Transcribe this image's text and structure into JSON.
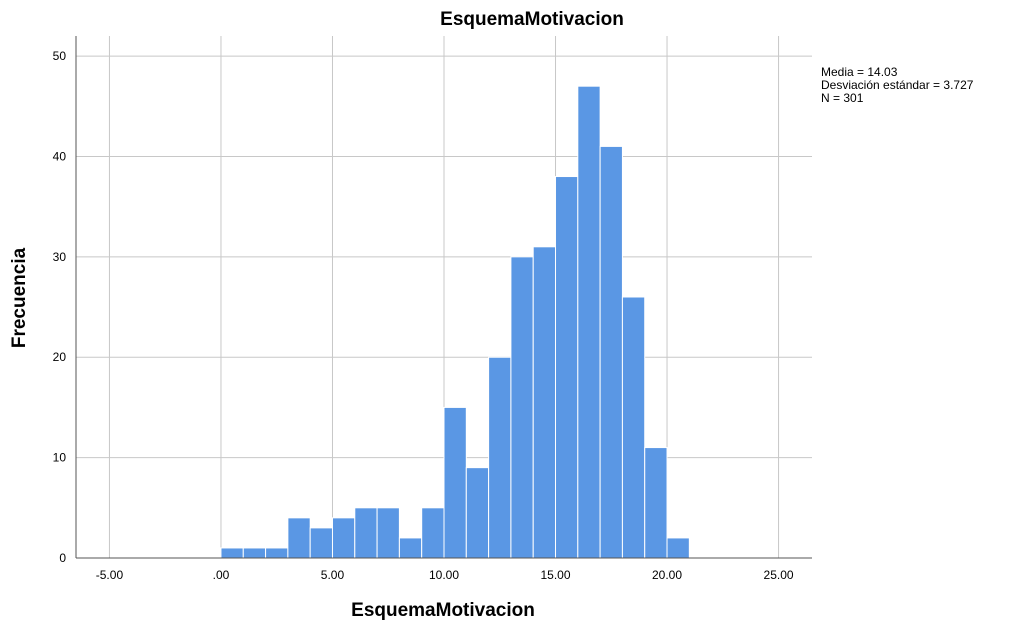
{
  "chart_data": {
    "type": "bar",
    "title": "EsquemaMotivacion",
    "xlabel": "EsquemaMotivacion",
    "ylabel": "Frecuencia",
    "bin_width": 1.0,
    "bins": [
      {
        "x0": 0.0,
        "count": 1
      },
      {
        "x0": 1.0,
        "count": 1
      },
      {
        "x0": 2.0,
        "count": 1
      },
      {
        "x0": 3.0,
        "count": 4
      },
      {
        "x0": 4.0,
        "count": 3
      },
      {
        "x0": 5.0,
        "count": 4
      },
      {
        "x0": 6.0,
        "count": 5
      },
      {
        "x0": 7.0,
        "count": 5
      },
      {
        "x0": 8.0,
        "count": 2
      },
      {
        "x0": 9.0,
        "count": 5
      },
      {
        "x0": 10.0,
        "count": 15
      },
      {
        "x0": 11.0,
        "count": 9
      },
      {
        "x0": 12.0,
        "count": 20
      },
      {
        "x0": 13.0,
        "count": 30
      },
      {
        "x0": 14.0,
        "count": 31
      },
      {
        "x0": 15.0,
        "count": 38
      },
      {
        "x0": 16.0,
        "count": 47
      },
      {
        "x0": 17.0,
        "count": 41
      },
      {
        "x0": 18.0,
        "count": 26
      },
      {
        "x0": 19.0,
        "count": 11
      },
      {
        "x0": 20.0,
        "count": 2
      }
    ],
    "xlim": [
      -6.5,
      26.5
    ],
    "ylim": [
      0,
      52
    ],
    "xticks": [
      -5,
      0,
      5,
      10,
      15,
      20,
      25
    ],
    "xtick_labels": [
      "-5.00",
      ".00",
      "5.00",
      "10.00",
      "15.00",
      "20.00",
      "25.00"
    ],
    "yticks": [
      0,
      10,
      20,
      30,
      40,
      50
    ],
    "ytick_labels": [
      "0",
      "10",
      "20",
      "30",
      "40",
      "50"
    ],
    "grid": true,
    "bar_color": "#5a97e4",
    "stats": {
      "media": "Media = 14.03",
      "sd": "Desviación estándar = 3.727",
      "n": "N = 301"
    },
    "stats_placement": "top-right"
  }
}
